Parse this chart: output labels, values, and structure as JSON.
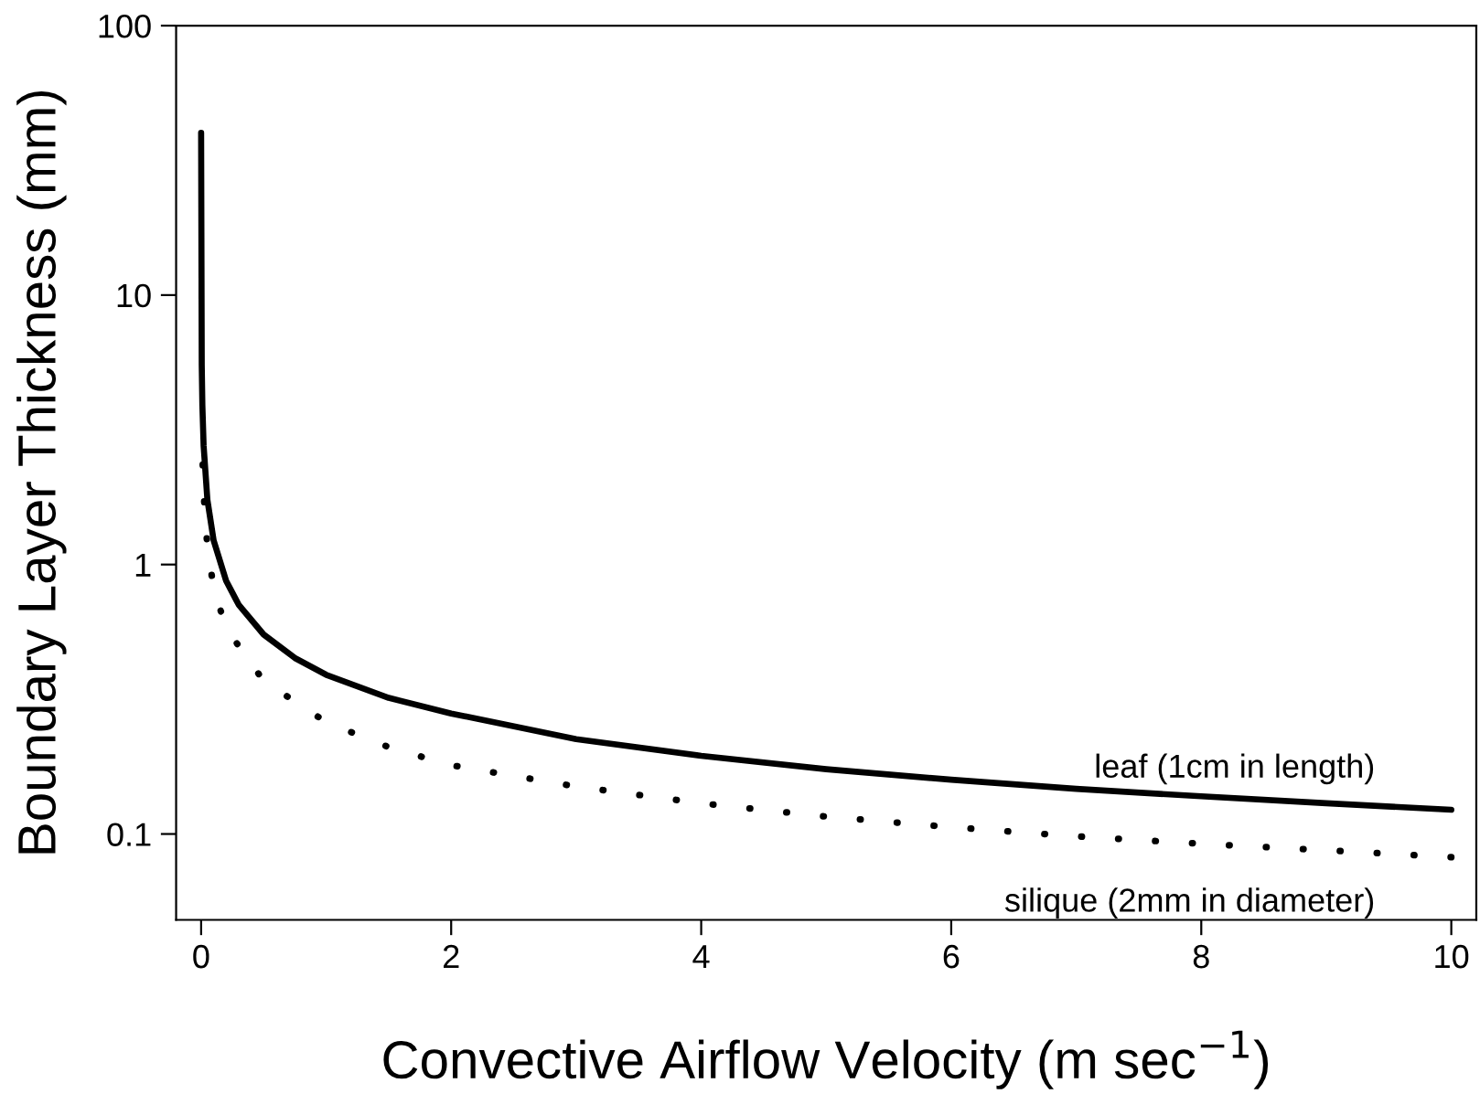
{
  "chart_data": {
    "type": "line",
    "xlabel": "Convective Airflow Velocity (m sec$^{−1}$)",
    "ylabel": "Boundary Layer Thickness (mm)",
    "log": "y",
    "xlim": [
      -0.2,
      10.2
    ],
    "ylim": [
      0.048,
      100
    ],
    "xticks": [
      0,
      2,
      4,
      6,
      8,
      10
    ],
    "yticks": [
      0.1,
      1,
      10,
      100
    ],
    "grid": false,
    "legend": false,
    "marker": "none",
    "series": [
      {
        "name": "leaf (1cm in length)",
        "color": "#000000",
        "line_style": "solid",
        "x": [
          0,
          0.005,
          0.01,
          0.02,
          0.05,
          0.1,
          0.2,
          0.3,
          0.5,
          0.75,
          1,
          1.5,
          2,
          3,
          4,
          5,
          6,
          7,
          8,
          9,
          10
        ],
        "values": [
          40,
          5.5,
          3.9,
          2.76,
          1.74,
          1.23,
          0.87,
          0.71,
          0.55,
          0.45,
          0.39,
          0.32,
          0.28,
          0.225,
          0.195,
          0.174,
          0.159,
          0.147,
          0.138,
          0.13,
          0.123
        ]
      },
      {
        "name": "silique (2mm in diameter)",
        "color": "#000000",
        "line_style": "dotted",
        "x": [
          0.01,
          0.02,
          0.05,
          0.1,
          0.2,
          0.5,
          1,
          1.5,
          2,
          3,
          4,
          5,
          6,
          7,
          8,
          9,
          10
        ],
        "values": [
          2.6,
          1.84,
          1.16,
          0.82,
          0.58,
          0.37,
          0.26,
          0.21,
          0.18,
          0.15,
          0.13,
          0.116,
          0.106,
          0.098,
          0.092,
          0.087,
          0.082
        ]
      }
    ]
  }
}
